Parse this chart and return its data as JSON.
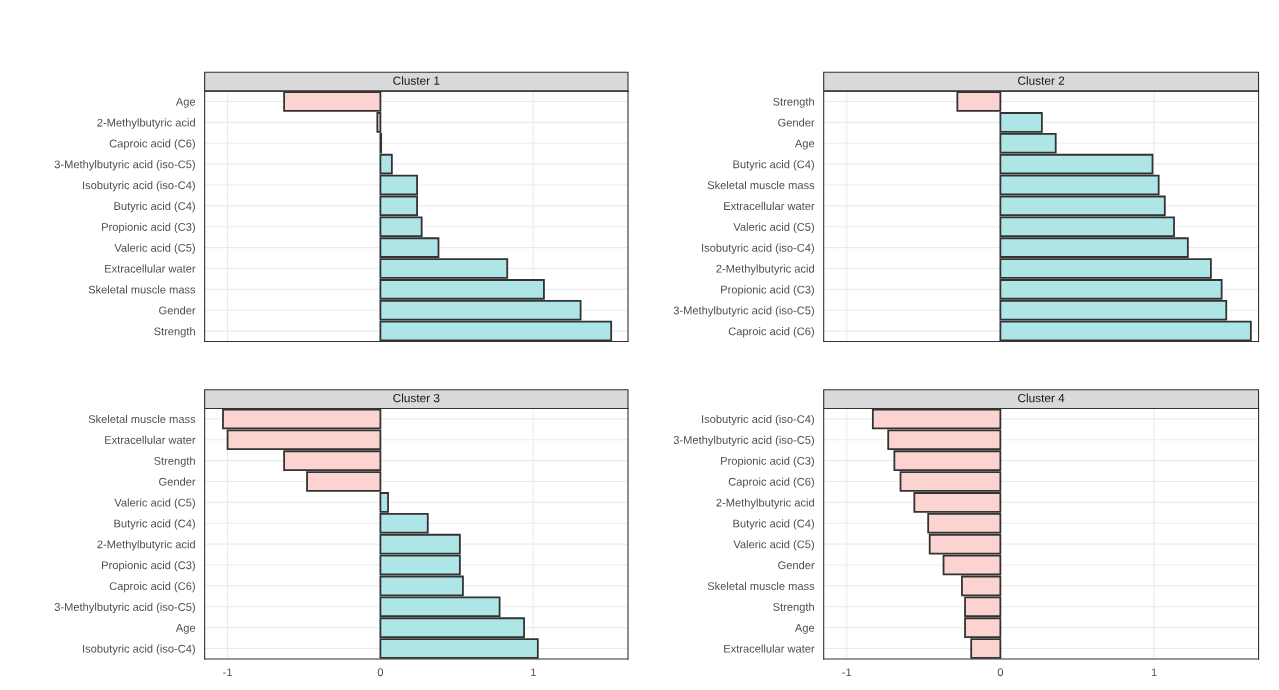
{
  "chart_data": [
    {
      "type": "bar",
      "orientation": "horizontal",
      "title": "Cluster 1",
      "tick_labels": "y",
      "grid": true,
      "xlim": [
        -1.15,
        1.62
      ],
      "xticks": [
        -1,
        0,
        1
      ],
      "categories": [
        "Age",
        "2-Methylbutyric acid",
        "Caproic acid (C6)",
        "3-Methylbutyric acid (iso-C5)",
        "Isobutyric acid (iso-C4)",
        "Butyric acid (C4)",
        "Propionic acid (C3)",
        "Valeric acid (C5)",
        "Extracellular water",
        "Skeletal muscle mass",
        "Gender",
        "Strength"
      ],
      "values": [
        -0.63,
        -0.02,
        0.005,
        0.075,
        0.24,
        0.24,
        0.27,
        0.38,
        0.83,
        1.07,
        1.31,
        1.51
      ],
      "colors": [
        "#fbd3d0",
        "#fbd3d0",
        "#aee6e8",
        "#aee6e8",
        "#aee6e8",
        "#aee6e8",
        "#aee6e8",
        "#aee6e8",
        "#aee6e8",
        "#aee6e8",
        "#aee6e8",
        "#aee6e8"
      ]
    },
    {
      "type": "bar",
      "orientation": "horizontal",
      "title": "Cluster 2",
      "tick_labels": "y",
      "grid": true,
      "xlim": [
        -1.15,
        1.68
      ],
      "xticks": [
        -1,
        0,
        1
      ],
      "categories": [
        "Strength",
        "Gender",
        "Age",
        "Butyric acid (C4)",
        "Skeletal muscle mass",
        "Extracellular water",
        "Valeric acid (C5)",
        "Isobutyric acid (iso-C4)",
        "2-Methylbutyric acid",
        "Propionic acid (C3)",
        "3-Methylbutyric acid (iso-C5)",
        "Caproic acid (C6)"
      ],
      "values": [
        -0.28,
        0.27,
        0.36,
        0.99,
        1.03,
        1.07,
        1.13,
        1.22,
        1.37,
        1.44,
        1.47,
        1.63
      ],
      "colors": [
        "#fbd3d0",
        "#aee6e8",
        "#aee6e8",
        "#aee6e8",
        "#aee6e8",
        "#aee6e8",
        "#aee6e8",
        "#aee6e8",
        "#aee6e8",
        "#aee6e8",
        "#aee6e8",
        "#aee6e8"
      ]
    },
    {
      "type": "bar",
      "orientation": "horizontal",
      "title": "Cluster 3",
      "grid": true,
      "xlim": [
        -1.15,
        1.62
      ],
      "xticks": [
        -1,
        0,
        1
      ],
      "categories": [
        "Skeletal muscle mass",
        "Extracellular water",
        "Strength",
        "Gender",
        "Valeric acid (C5)",
        "Butyric acid (C4)",
        "2-Methylbutyric acid",
        "Propionic acid (C3)",
        "Caproic acid (C6)",
        "3-Methylbutyric acid (iso-C5)",
        "Age",
        "Isobutyric acid (iso-C4)"
      ],
      "values": [
        -1.03,
        -1.0,
        -0.63,
        -0.48,
        0.05,
        0.31,
        0.52,
        0.52,
        0.54,
        0.78,
        0.94,
        1.03
      ],
      "colors": [
        "#fbd3d0",
        "#fbd3d0",
        "#fbd3d0",
        "#fbd3d0",
        "#aee6e8",
        "#aee6e8",
        "#aee6e8",
        "#aee6e8",
        "#aee6e8",
        "#aee6e8",
        "#aee6e8",
        "#aee6e8"
      ]
    },
    {
      "type": "bar",
      "orientation": "horizontal",
      "title": "Cluster 4",
      "grid": true,
      "xlim": [
        -1.15,
        1.68
      ],
      "xticks": [
        -1,
        0,
        1
      ],
      "categories": [
        "Isobutyric acid (iso-C4)",
        "3-Methylbutyric acid (iso-C5)",
        "Propionic acid (C3)",
        "Caproic acid (C6)",
        "2-Methylbutyric acid",
        "Butyric acid (C4)",
        "Valeric acid (C5)",
        "Gender",
        "Skeletal muscle mass",
        "Strength",
        "Age",
        "Extracellular water"
      ],
      "values": [
        -0.83,
        -0.73,
        -0.69,
        -0.65,
        -0.56,
        -0.47,
        -0.46,
        -0.37,
        -0.25,
        -0.23,
        -0.23,
        -0.19
      ],
      "colors": [
        "#fbd3d0",
        "#fbd3d0",
        "#fbd3d0",
        "#fbd3d0",
        "#fbd3d0",
        "#fbd3d0",
        "#fbd3d0",
        "#fbd3d0",
        "#fbd3d0",
        "#fbd3d0",
        "#fbd3d0",
        "#fbd3d0"
      ]
    }
  ]
}
